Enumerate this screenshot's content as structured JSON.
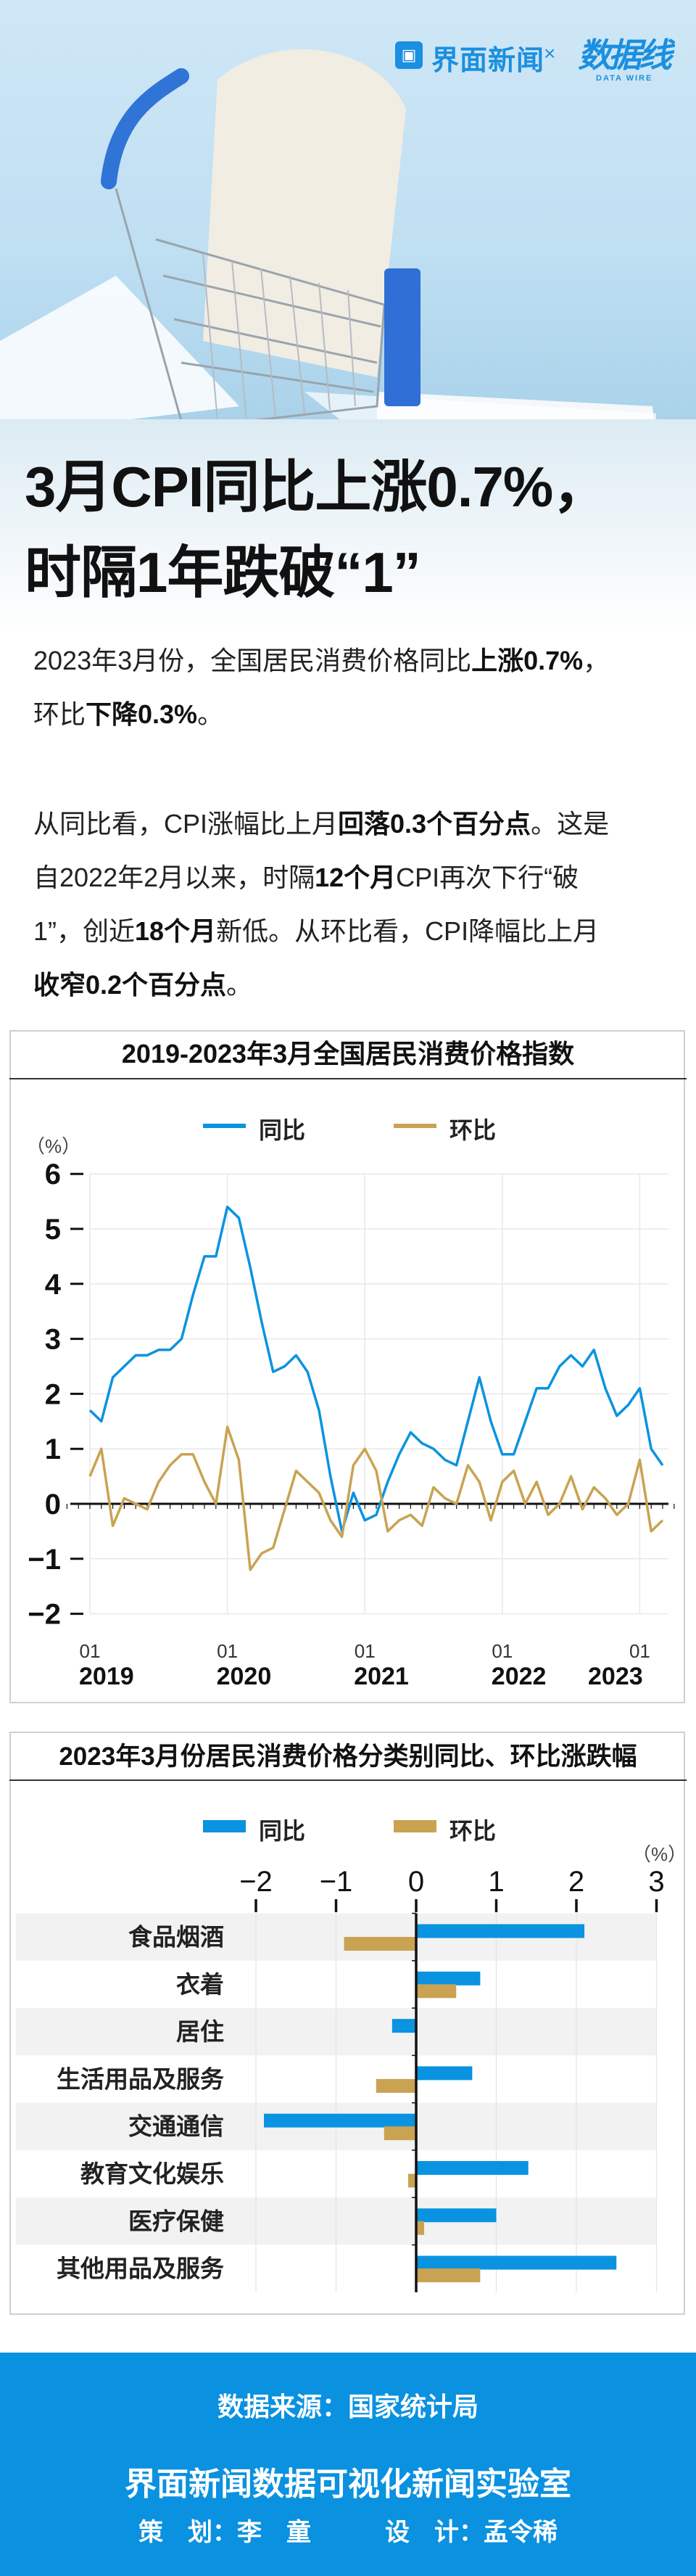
{
  "header": {
    "brand1": "界面新闻",
    "brand1_icon": "window-frame-icon",
    "separator": "×",
    "brand2": "数据线",
    "brand2_sub": "DATA WIRE"
  },
  "headline": {
    "line1": "3月CPI同比上涨0.7%，",
    "line2": "时隔1年跌破“1”"
  },
  "paragraphs": [
    [
      [
        {
          "t": "2023年3月份，全国居民消费价格同比",
          "b": false
        },
        {
          "t": "上涨0.7%",
          "b": true
        },
        {
          "t": "，",
          "b": false
        }
      ],
      [
        {
          "t": "环比",
          "b": false
        },
        {
          "t": "下降0.3%",
          "b": true
        },
        {
          "t": "。",
          "b": false
        }
      ]
    ],
    [
      [
        {
          "t": "从同比看，CPI涨幅比上月",
          "b": false
        },
        {
          "t": "回落0.3个百分点",
          "b": true
        },
        {
          "t": "。这是",
          "b": false
        }
      ],
      [
        {
          "t": "自2022年2月以来，时隔",
          "b": false
        },
        {
          "t": "12个月",
          "b": true
        },
        {
          "t": "CPI再次下行“破",
          "b": false
        }
      ],
      [
        {
          "t": "1”，创近",
          "b": false
        },
        {
          "t": "18个月",
          "b": true
        },
        {
          "t": "新低。从环比看，CPI降幅比上月",
          "b": false
        }
      ],
      [
        {
          "t": "收窄0.2个百分点",
          "b": true
        },
        {
          "t": "。",
          "b": false
        }
      ]
    ]
  ],
  "colors": {
    "yoy": "#0a93e0",
    "mom": "#c9a352",
    "footer": "#0a91e0",
    "row_band": "#f2f2f2"
  },
  "chart_data": [
    {
      "type": "line",
      "title": "2019-2023年3月全国居民消费价格指数",
      "unit": "（%）",
      "ylim": [
        -2,
        6
      ],
      "yticks": [
        "6",
        "5",
        "4",
        "3",
        "2",
        "1",
        "0",
        "−1",
        "−2"
      ],
      "ytick_values": [
        6,
        5,
        4,
        3,
        2,
        1,
        0,
        -1,
        -2
      ],
      "x_start": "2019-01",
      "x_end": "2023-03",
      "xtick_month": "01",
      "xtick_years": [
        "2019",
        "2020",
        "2021",
        "2022",
        "2023"
      ],
      "grid": true,
      "legend_position": "top-center",
      "series": [
        {
          "name": "同比",
          "values": [
            1.7,
            1.5,
            2.3,
            2.5,
            2.7,
            2.7,
            2.8,
            2.8,
            3.0,
            3.8,
            4.5,
            4.5,
            5.4,
            5.2,
            4.3,
            3.3,
            2.4,
            2.5,
            2.7,
            2.4,
            1.7,
            0.5,
            -0.5,
            0.2,
            -0.3,
            -0.2,
            0.4,
            0.9,
            1.3,
            1.1,
            1.0,
            0.8,
            0.7,
            1.5,
            2.3,
            1.5,
            0.9,
            0.9,
            1.5,
            2.1,
            2.1,
            2.5,
            2.7,
            2.5,
            2.8,
            2.1,
            1.6,
            1.8,
            2.1,
            1.0,
            0.7
          ]
        },
        {
          "name": "环比",
          "values": [
            0.5,
            1.0,
            -0.4,
            0.1,
            0.0,
            -0.1,
            0.4,
            0.7,
            0.9,
            0.9,
            0.4,
            0.0,
            1.4,
            0.8,
            -1.2,
            -0.9,
            -0.8,
            -0.1,
            0.6,
            0.4,
            0.2,
            -0.3,
            -0.6,
            0.7,
            1.0,
            0.6,
            -0.5,
            -0.3,
            -0.2,
            -0.4,
            0.3,
            0.1,
            0.0,
            0.7,
            0.4,
            -0.3,
            0.4,
            0.6,
            0.0,
            0.4,
            -0.2,
            0.0,
            0.5,
            -0.1,
            0.3,
            0.1,
            -0.2,
            0.0,
            0.8,
            -0.5,
            -0.3
          ]
        }
      ]
    },
    {
      "type": "bar",
      "orientation": "horizontal",
      "title": "2023年3月份居民消费价格分类别同比、环比涨跌幅",
      "unit": "（%）",
      "xlim": [
        -2,
        3
      ],
      "xticks": [
        "−2",
        "−1",
        "0",
        "1",
        "2",
        "3"
      ],
      "xtick_values": [
        -2,
        -1,
        0,
        1,
        2,
        3
      ],
      "legend_position": "top-center",
      "categories": [
        "食品烟酒",
        "衣着",
        "居住",
        "生活用品及服务",
        "交通通信",
        "教育文化娱乐",
        "医疗保健",
        "其他用品及服务"
      ],
      "series": [
        {
          "name": "同比",
          "values": [
            2.1,
            0.8,
            -0.3,
            0.7,
            -1.9,
            1.4,
            1.0,
            2.5
          ]
        },
        {
          "name": "环比",
          "values": [
            -0.9,
            0.5,
            0.0,
            -0.5,
            -0.4,
            -0.1,
            0.1,
            0.8
          ]
        }
      ]
    }
  ],
  "footer": {
    "source": "数据来源：国家统计局",
    "lab": "界面新闻数据可视化新闻实验室",
    "credits": "策　划：李　童　　　设　计：孟令稀"
  }
}
